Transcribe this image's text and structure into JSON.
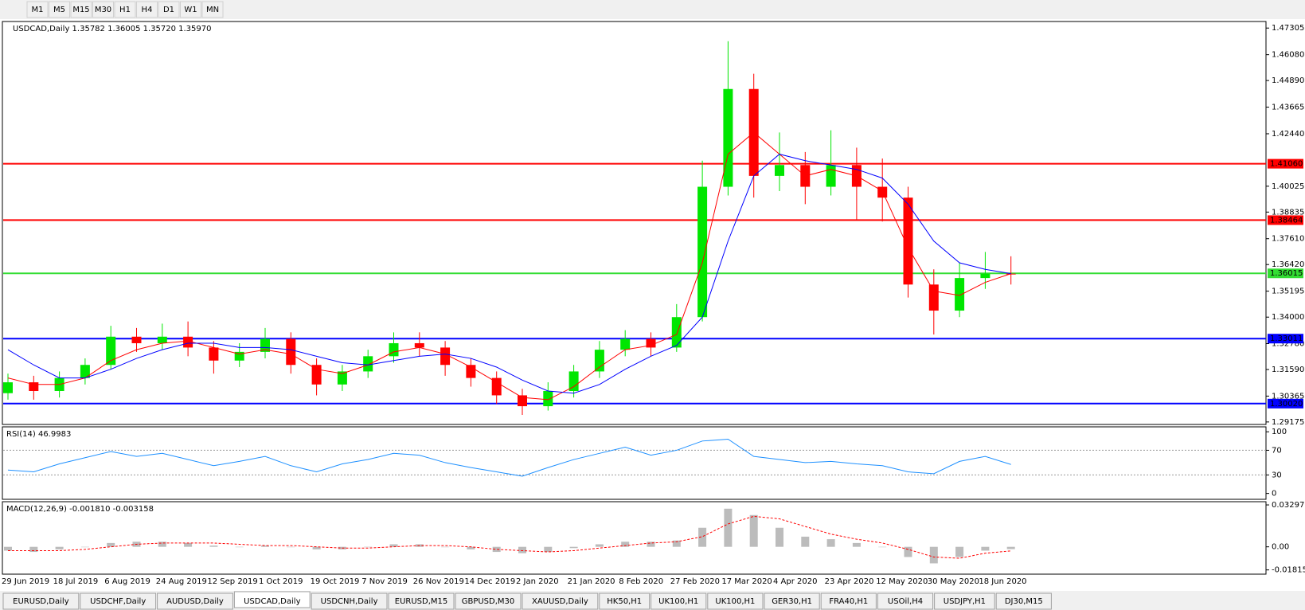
{
  "toolbar": {
    "timeframes": [
      "M1",
      "M5",
      "M15",
      "M30",
      "H1",
      "H4",
      "D1",
      "W1",
      "MN"
    ]
  },
  "chart_data": [
    {
      "type": "candlestick",
      "title": "USDCAD,Daily 1.35782 1.36005 1.35720 1.35970",
      "categories": [
        "29 Jun 2019",
        null,
        "18 Jul 2019",
        null,
        "6 Aug 2019",
        null,
        "24 Aug 2019",
        null,
        "12 Sep 2019",
        null,
        "1 Oct 2019",
        null,
        "19 Oct 2019",
        null,
        "7 Nov 2019",
        null,
        "26 Nov 2019",
        null,
        "14 Dec 2019",
        null,
        "2 Jan 2020",
        null,
        "21 Jan 2020",
        null,
        "8 Feb 2020",
        null,
        "27 Feb 2020",
        null,
        "17 Mar 2020",
        null,
        "4 Apr 2020",
        null,
        "23 Apr 2020",
        null,
        "12 May 2020",
        null,
        "30 May 2020",
        null,
        "18 Jun 2020",
        null
      ],
      "ohlc": [
        [
          1.305,
          1.314,
          1.302,
          1.31
        ],
        [
          1.31,
          1.313,
          1.302,
          1.306
        ],
        [
          1.306,
          1.315,
          1.303,
          1.312
        ],
        [
          1.312,
          1.321,
          1.309,
          1.318
        ],
        [
          1.318,
          1.336,
          1.316,
          1.331
        ],
        [
          1.331,
          1.335,
          1.324,
          1.328
        ],
        [
          1.328,
          1.337,
          1.325,
          1.331
        ],
        [
          1.331,
          1.338,
          1.322,
          1.326
        ],
        [
          1.326,
          1.329,
          1.314,
          1.32
        ],
        [
          1.32,
          1.328,
          1.317,
          1.324
        ],
        [
          1.324,
          1.335,
          1.321,
          1.33
        ],
        [
          1.33,
          1.333,
          1.314,
          1.318
        ],
        [
          1.318,
          1.321,
          1.304,
          1.309
        ],
        [
          1.309,
          1.318,
          1.306,
          1.315
        ],
        [
          1.315,
          1.325,
          1.312,
          1.322
        ],
        [
          1.322,
          1.333,
          1.319,
          1.328
        ],
        [
          1.328,
          1.333,
          1.322,
          1.326
        ],
        [
          1.326,
          1.329,
          1.313,
          1.318
        ],
        [
          1.318,
          1.321,
          1.308,
          1.312
        ],
        [
          1.312,
          1.315,
          1.3,
          1.304
        ],
        [
          1.304,
          1.307,
          1.295,
          1.299
        ],
        [
          1.299,
          1.31,
          1.297,
          1.306
        ],
        [
          1.306,
          1.318,
          1.303,
          1.315
        ],
        [
          1.315,
          1.329,
          1.312,
          1.325
        ],
        [
          1.325,
          1.334,
          1.322,
          1.33
        ],
        [
          1.33,
          1.333,
          1.322,
          1.326
        ],
        [
          1.326,
          1.346,
          1.324,
          1.34
        ],
        [
          1.34,
          1.412,
          1.338,
          1.4
        ],
        [
          1.4,
          1.467,
          1.396,
          1.445
        ],
        [
          1.445,
          1.452,
          1.395,
          1.405
        ],
        [
          1.405,
          1.425,
          1.398,
          1.41
        ],
        [
          1.41,
          1.416,
          1.392,
          1.4
        ],
        [
          1.4,
          1.426,
          1.396,
          1.41
        ],
        [
          1.41,
          1.418,
          1.385,
          1.4
        ],
        [
          1.4,
          1.413,
          1.384,
          1.395
        ],
        [
          1.395,
          1.4,
          1.349,
          1.355
        ],
        [
          1.355,
          1.362,
          1.332,
          1.343
        ],
        [
          1.343,
          1.365,
          1.34,
          1.358
        ],
        [
          1.358,
          1.37,
          1.353,
          1.36
        ],
        [
          1.36,
          1.368,
          1.355,
          1.3597
        ]
      ],
      "up_color": "#00e600",
      "down_color": "#ff0000",
      "moving_averages": [
        {
          "color": "#ff0000",
          "values": [
            1.312,
            1.309,
            1.309,
            1.312,
            1.32,
            1.325,
            1.328,
            1.329,
            1.326,
            1.323,
            1.325,
            1.323,
            1.316,
            1.314,
            1.318,
            1.324,
            1.326,
            1.323,
            1.317,
            1.31,
            1.303,
            1.302,
            1.308,
            1.317,
            1.325,
            1.327,
            1.332,
            1.365,
            1.415,
            1.425,
            1.415,
            1.405,
            1.408,
            1.405,
            1.398,
            1.372,
            1.352,
            1.35,
            1.356,
            1.36
          ]
        },
        {
          "color": "#0000ff",
          "values": [
            1.325,
            1.318,
            1.312,
            1.312,
            1.316,
            1.321,
            1.325,
            1.328,
            1.328,
            1.326,
            1.326,
            1.325,
            1.322,
            1.319,
            1.318,
            1.32,
            1.322,
            1.323,
            1.321,
            1.317,
            1.311,
            1.306,
            1.305,
            1.309,
            1.316,
            1.322,
            1.327,
            1.34,
            1.375,
            1.405,
            1.415,
            1.412,
            1.41,
            1.408,
            1.404,
            1.392,
            1.375,
            1.365,
            1.362,
            1.36
          ]
        }
      ],
      "levels": [
        {
          "value": 1.4106,
          "label": "1.41060",
          "color": "#ff0000"
        },
        {
          "value": 1.38464,
          "label": "1.38464",
          "color": "#ff0000"
        },
        {
          "value": 1.36015,
          "label": "1.36015",
          "color": "#33dd33"
        },
        {
          "value": 1.33011,
          "label": "1.33011",
          "color": "#0000ff"
        },
        {
          "value": 1.3002,
          "label": "1.30020",
          "color": "#0000ff"
        }
      ],
      "ylim": [
        1.2906,
        1.4757
      ],
      "yticks": [
        {
          "value": 1.47305,
          "label": "1.47305"
        },
        {
          "value": 1.4608,
          "label": "1.46080"
        },
        {
          "value": 1.4489,
          "label": "1.44890"
        },
        {
          "value": 1.43665,
          "label": "1.43665"
        },
        {
          "value": 1.4244,
          "label": "1.42440"
        },
        {
          "value": 1.40025,
          "label": "1.40025"
        },
        {
          "value": 1.38835,
          "label": "1.38835"
        },
        {
          "value": 1.3761,
          "label": "1.37610"
        },
        {
          "value": 1.3642,
          "label": "1.36420"
        },
        {
          "value": 1.35195,
          "label": "1.35195"
        },
        {
          "value": 1.34,
          "label": "1.34000"
        },
        {
          "value": 1.3278,
          "label": "1.32780"
        },
        {
          "value": 1.3159,
          "label": "1.31590"
        },
        {
          "value": 1.30365,
          "label": "1.30365"
        },
        {
          "value": 1.29175,
          "label": "1.29175"
        }
      ]
    },
    {
      "type": "line",
      "title": "RSI(14) 46.9983",
      "color": "#1e90ff",
      "values": [
        38,
        35,
        48,
        58,
        68,
        60,
        65,
        55,
        45,
        52,
        60,
        45,
        35,
        48,
        55,
        65,
        62,
        50,
        42,
        35,
        28,
        42,
        55,
        65,
        75,
        62,
        70,
        85,
        88,
        60,
        55,
        50,
        52,
        48,
        45,
        35,
        32,
        52,
        60,
        47
      ],
      "ylim": [
        -9.5,
        108
      ],
      "yticks": [
        100,
        70,
        30,
        0
      ],
      "levels": [
        70,
        30
      ]
    },
    {
      "type": "macd",
      "title": "MACD(12,26,9) -0.001810 -0.003158",
      "color": "#a0a0a0",
      "signal_color": "#ff0000",
      "values": [
        -0.003,
        -0.004,
        -0.002,
        0,
        0.003,
        0.004,
        0.004,
        0.003,
        0.001,
        0,
        0.001,
        0,
        -0.002,
        -0.002,
        0,
        0.002,
        0.002,
        0,
        -0.002,
        -0.004,
        -0.005,
        -0.004,
        -0.001,
        0.002,
        0.004,
        0.004,
        0.005,
        0.015,
        0.03,
        0.025,
        0.015,
        0.008,
        0.006,
        0.003,
        0,
        -0.008,
        -0.013,
        -0.008,
        -0.003,
        -0.0018
      ],
      "signal": [
        -0.003,
        -0.003,
        -0.003,
        -0.002,
        0,
        0.002,
        0.003,
        0.003,
        0.003,
        0.002,
        0.001,
        0.001,
        0,
        -0.001,
        -0.001,
        0,
        0.001,
        0.001,
        0,
        -0.002,
        -0.003,
        -0.004,
        -0.003,
        -0.001,
        0.001,
        0.003,
        0.004,
        0.008,
        0.018,
        0.024,
        0.022,
        0.016,
        0.01,
        0.006,
        0.003,
        -0.002,
        -0.008,
        -0.009,
        -0.005,
        -0.0032
      ],
      "ylim": [
        -0.0215,
        0.0355
      ],
      "yticks": [
        0.032972,
        {
          "value": 0,
          "label": "0.00"
        },
        -0.018154
      ]
    }
  ],
  "tabs": {
    "items": [
      "EURUSD,Daily",
      "USDCHF,Daily",
      "AUDUSD,Daily",
      "USDCAD,Daily",
      "USDCNH,Daily",
      "EURUSD,M15",
      "GBPUSD,M30",
      "XAUUSD,Daily",
      "HK50,H1",
      "UK100,H1",
      "UK100,H1",
      "GER30,H1",
      "FRA40,H1",
      "USOil,H4",
      "USDJPY,H1",
      "DJ30,M15"
    ],
    "active": 3
  }
}
